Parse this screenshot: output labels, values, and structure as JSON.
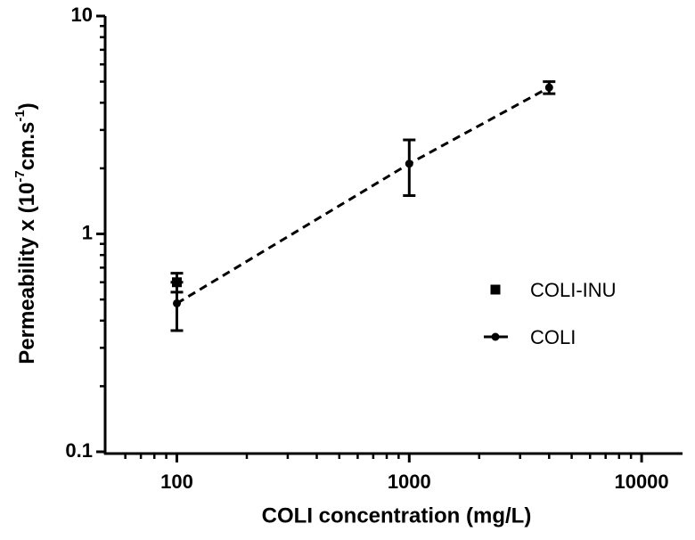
{
  "chart_data": {
    "type": "scatter",
    "xlabel": "COLI concentration (mg/L)",
    "ylabel_parts": [
      "Permeability x (10",
      "-7",
      "cm.s",
      "-1",
      ")"
    ],
    "xscale": "log",
    "yscale": "log",
    "xlim": [
      50,
      15000
    ],
    "ylim": [
      0.1,
      10
    ],
    "xticks": [
      100,
      1000,
      10000
    ],
    "yticks": [
      0.1,
      1,
      10
    ],
    "x_minor_ticks": [
      60,
      70,
      80,
      90,
      200,
      300,
      400,
      500,
      600,
      700,
      800,
      900,
      2000,
      3000,
      4000,
      5000,
      6000,
      7000,
      8000,
      9000
    ],
    "y_minor_ticks": [
      0.2,
      0.3,
      0.4,
      0.5,
      0.6,
      0.7,
      0.8,
      0.9,
      2,
      3,
      4,
      5,
      6,
      7,
      8,
      9
    ],
    "legend_loc": "center right",
    "series": [
      {
        "name": "COLI-INU",
        "color": "#000000",
        "marker": "square",
        "x": [
          100
        ],
        "values": [
          0.6
        ],
        "errors": [
          0.06
        ]
      },
      {
        "name": "COLI",
        "color": "#000000",
        "marker": "circle",
        "line": "dashed",
        "x": [
          100,
          1000,
          4000
        ],
        "values": [
          0.48,
          2.1,
          4.7
        ],
        "errors": [
          0.12,
          0.6,
          0.3
        ]
      }
    ]
  }
}
